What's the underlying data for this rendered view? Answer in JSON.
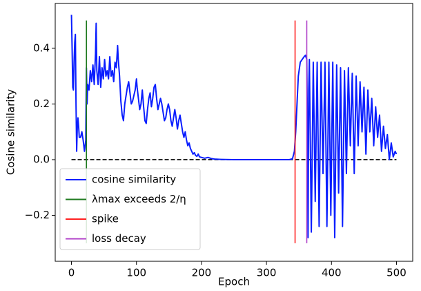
{
  "chart_data": {
    "type": "line",
    "x_label": "Epoch",
    "y_label": "Cosine similarity",
    "xlim": [
      -25,
      525
    ],
    "ylim": [
      -0.365,
      0.561
    ],
    "xticks": [
      0,
      100,
      200,
      300,
      400,
      500
    ],
    "yticks": [
      {
        "value": -0.2,
        "label": "−0.2"
      },
      {
        "value": 0,
        "label": "0.0"
      },
      0.2,
      0.4
    ],
    "legend": "lower left",
    "series": [
      {
        "name": "cosine similarity",
        "color": "#0a1eff",
        "x": [
          0,
          1,
          2,
          3,
          4,
          5,
          6,
          7,
          8,
          9,
          10,
          11,
          12,
          14,
          16,
          18,
          20,
          22,
          23,
          24,
          25,
          27,
          29,
          31,
          33,
          35,
          37,
          38,
          39,
          41,
          43,
          45,
          47,
          49,
          51,
          53,
          55,
          57,
          59,
          61,
          63,
          65,
          67,
          69,
          71,
          72,
          74,
          76,
          78,
          80,
          82,
          84,
          86,
          88,
          90,
          92,
          94,
          96,
          98,
          100,
          101,
          103,
          105,
          107,
          109,
          111,
          113,
          115,
          117,
          119,
          121,
          123,
          125,
          127,
          129,
          131,
          133,
          135,
          137,
          139,
          141,
          143,
          145,
          147,
          149,
          151,
          153,
          155,
          157,
          159,
          161,
          163,
          165,
          167,
          169,
          171,
          173,
          175,
          177,
          179,
          181,
          183,
          185,
          187,
          189,
          191,
          193,
          195,
          197,
          200,
          205,
          210,
          215,
          220,
          230,
          250,
          300,
          335,
          340,
          343,
          345,
          347,
          349,
          352,
          355,
          358,
          360,
          362,
          363,
          364,
          365,
          366,
          369,
          372,
          375,
          378,
          381,
          384,
          387,
          390,
          393,
          396,
          399,
          402,
          405,
          408,
          411,
          414,
          417,
          420,
          423,
          426,
          429,
          432,
          435,
          438,
          441,
          444,
          447,
          450,
          453,
          456,
          459,
          462,
          465,
          468,
          471,
          474,
          477,
          480,
          483,
          486,
          489,
          492,
          495,
          498,
          500
        ],
        "values": [
          0.52,
          0.4,
          0.26,
          0.25,
          0.35,
          0.42,
          0.45,
          0.2,
          0.03,
          0.12,
          0.15,
          0.12,
          0.08,
          0.08,
          0.1,
          0.07,
          0.03,
          0.07,
          0.33,
          0.2,
          0.27,
          0.25,
          0.32,
          0.28,
          0.34,
          0.27,
          0.38,
          0.49,
          0.32,
          0.27,
          0.37,
          0.26,
          0.33,
          0.29,
          0.36,
          0.3,
          0.32,
          0.29,
          0.37,
          0.3,
          0.32,
          0.28,
          0.35,
          0.33,
          0.41,
          0.36,
          0.3,
          0.21,
          0.16,
          0.14,
          0.2,
          0.23,
          0.26,
          0.28,
          0.24,
          0.2,
          0.21,
          0.23,
          0.25,
          0.29,
          0.26,
          0.22,
          0.18,
          0.2,
          0.25,
          0.19,
          0.14,
          0.13,
          0.18,
          0.22,
          0.24,
          0.19,
          0.22,
          0.26,
          0.27,
          0.22,
          0.18,
          0.2,
          0.22,
          0.2,
          0.17,
          0.14,
          0.15,
          0.18,
          0.2,
          0.18,
          0.14,
          0.12,
          0.15,
          0.18,
          0.15,
          0.11,
          0.14,
          0.16,
          0.13,
          0.1,
          0.08,
          0.1,
          0.07,
          0.05,
          0.06,
          0.04,
          0.03,
          0.02,
          0.025,
          0.015,
          0.012,
          0.02,
          0.01,
          0.008,
          0.005,
          0.008,
          0.004,
          0.002,
          0.001,
          0.0,
          0.0,
          0.0,
          0.003,
          0.03,
          0.1,
          0.2,
          0.3,
          0.35,
          0.36,
          0.37,
          0.375,
          0.36,
          0.1,
          -0.28,
          0.25,
          0.36,
          -0.26,
          0.35,
          -0.15,
          0.35,
          -0.24,
          0.35,
          -0.05,
          0.35,
          -0.24,
          0.35,
          -0.2,
          0.35,
          -0.28,
          0.34,
          -0.12,
          0.33,
          -0.24,
          0.32,
          -0.05,
          0.33,
          0.05,
          0.31,
          -0.05,
          0.3,
          0.05,
          0.28,
          0.1,
          0.26,
          0.02,
          0.25,
          0.1,
          0.22,
          0.05,
          0.19,
          0.08,
          0.16,
          0.03,
          0.12,
          0.04,
          0.09,
          0.0,
          0.06,
          0.01,
          0.03,
          0.02
        ]
      }
    ],
    "reference_line": {
      "y": 0,
      "x": [
        0,
        500
      ],
      "color": "#000000",
      "style": "dashed"
    },
    "vlines": [
      {
        "name": "λmax exceeds 2/η",
        "color": "#1f7a1f",
        "x": 23,
        "ylim": [
          -0.3,
          0.5
        ]
      },
      {
        "name": "spike",
        "color": "#ff2020",
        "x": 344,
        "ylim": [
          -0.3,
          0.5
        ]
      },
      {
        "name": "loss decay",
        "color": "#b040c8",
        "x": 362,
        "ylim": [
          -0.3,
          0.5
        ]
      }
    ]
  }
}
